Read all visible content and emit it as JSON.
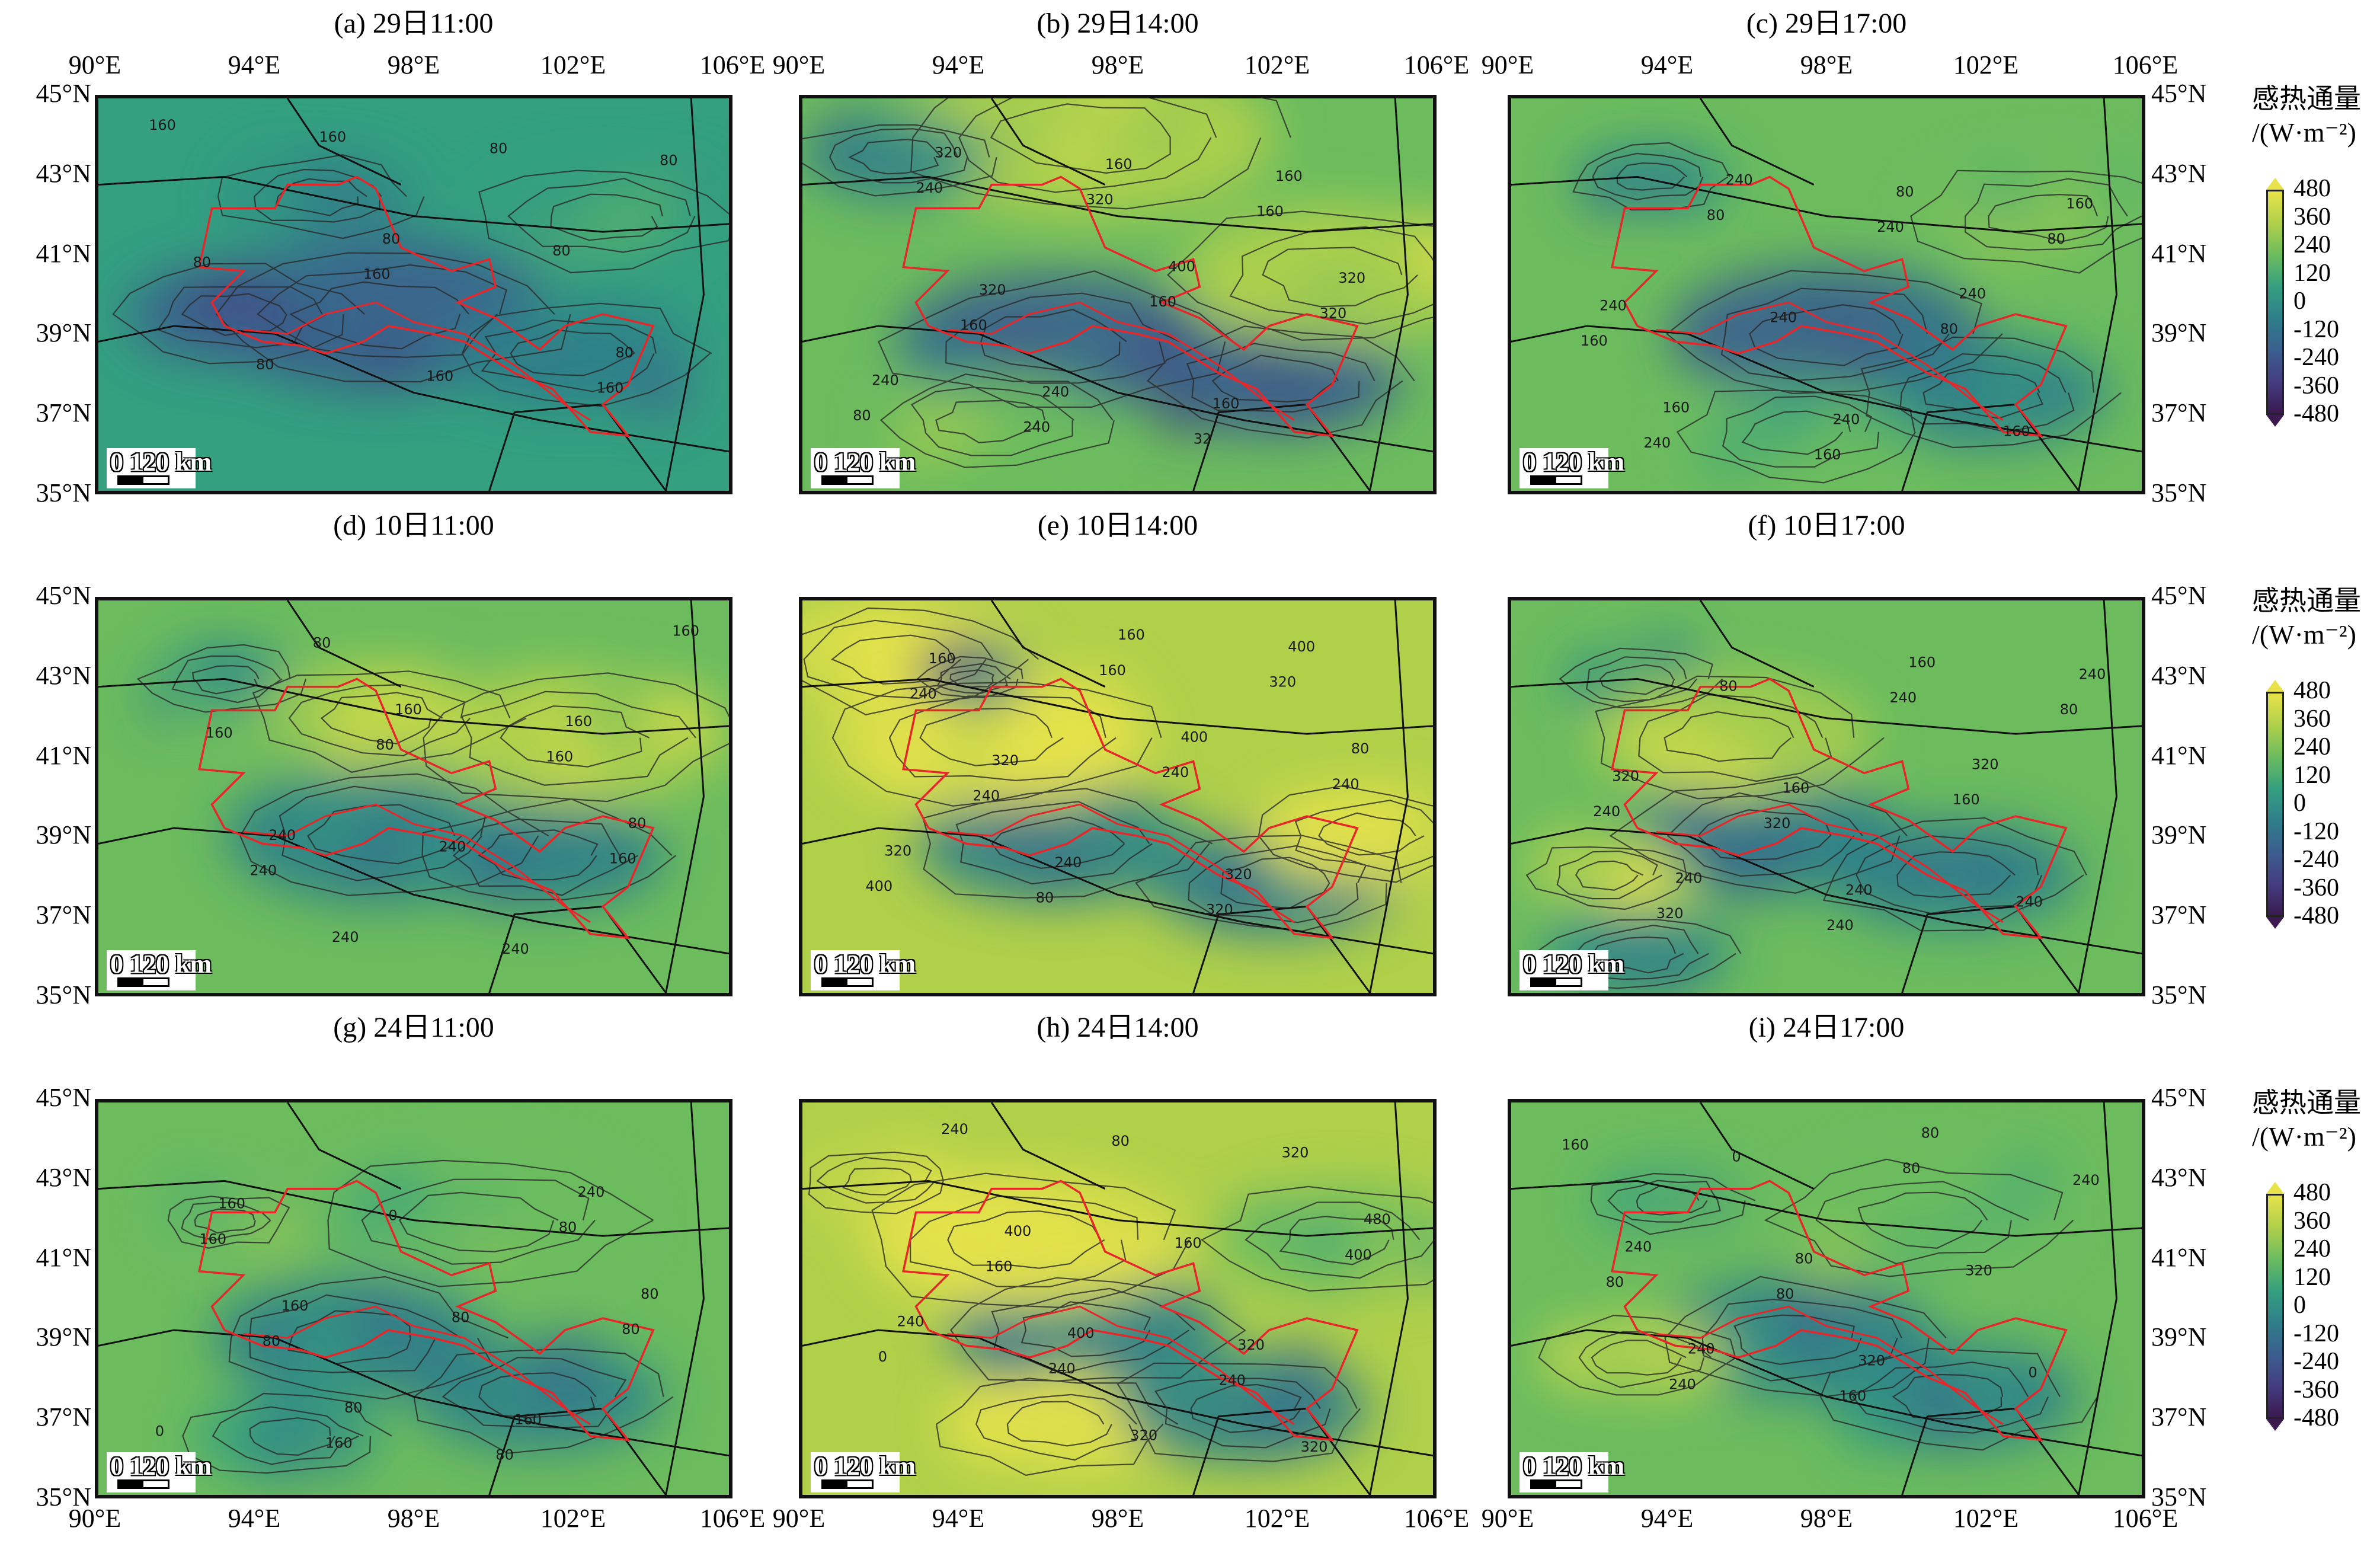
{
  "chart_data": {
    "type": "heatmap",
    "layout": "3x3 small multiples of gridded maps with contour lines",
    "variable_label": "感热通量",
    "unit_label": "/(W·m⁻²)",
    "colorbar": {
      "ticks": [
        480,
        360,
        240,
        120,
        0,
        -120,
        -240,
        -360,
        -480
      ],
      "range": [
        -480,
        480
      ],
      "extend": "both",
      "colors": [
        "#3a1a4f",
        "#443d82",
        "#3b5f8e",
        "#2e7f8a",
        "#34a07f",
        "#6cbc5e",
        "#b0d04a",
        "#e8e34a"
      ]
    },
    "x_ticks": [
      "90°E",
      "94°E",
      "98°E",
      "102°E",
      "106°E"
    ],
    "y_ticks": [
      "45°N",
      "43°N",
      "41°N",
      "39°N",
      "37°N",
      "35°N"
    ],
    "lon_range": [
      90,
      106
    ],
    "lat_range": [
      35,
      45
    ],
    "scalebar_label": "0 120 km",
    "boundary_color": "#e8262a",
    "panels": [
      {
        "id": "a",
        "title": "(a) 29日11:00",
        "contour_labels": [
          "160",
          "80",
          "80",
          "160",
          "80",
          "80",
          "80",
          "80",
          "160",
          "80",
          "160",
          "160"
        ]
      },
      {
        "id": "b",
        "title": "(b) 29日14:00",
        "contour_labels": [
          "320",
          "400",
          "240",
          "160",
          "320",
          "240",
          "160",
          "320",
          "160",
          "240",
          "160",
          "80",
          "320",
          "320",
          "240",
          "160",
          "160",
          "32"
        ]
      },
      {
        "id": "c",
        "title": "(c) 29日17:00",
        "contour_labels": [
          "240",
          "240",
          "160",
          "80",
          "240",
          "240",
          "160",
          "240",
          "160",
          "80",
          "80",
          "240",
          "240",
          "160",
          "160",
          "80"
        ]
      },
      {
        "id": "d",
        "title": "(d) 10日11:00",
        "contour_labels": [
          "160",
          "80",
          "240",
          "160",
          "240",
          "240",
          "160",
          "240",
          "160",
          "80",
          "160",
          "80",
          "160",
          "240"
        ]
      },
      {
        "id": "e",
        "title": "(e) 10日14:00",
        "contour_labels": [
          "400",
          "320",
          "160",
          "80",
          "240",
          "400",
          "320",
          "320",
          "160",
          "240",
          "400",
          "160",
          "240",
          "80",
          "320",
          "240",
          "320",
          "240"
        ]
      },
      {
        "id": "f",
        "title": "(f) 10日17:00",
        "contour_labels": [
          "320",
          "240",
          "160",
          "320",
          "240",
          "240",
          "160",
          "240",
          "80",
          "160",
          "320",
          "240",
          "240",
          "240",
          "80",
          "320"
        ]
      },
      {
        "id": "g",
        "title": "(g) 24日11:00",
        "contour_labels": [
          "80",
          "80",
          "240",
          "160",
          "160",
          "160",
          "80",
          "0",
          "0",
          "80",
          "160",
          "80",
          "80",
          "80",
          "160"
        ]
      },
      {
        "id": "h",
        "title": "(h) 24日14:00",
        "contour_labels": [
          "240",
          "320",
          "480",
          "400",
          "320",
          "400",
          "320",
          "240",
          "160",
          "0",
          "80",
          "400",
          "240",
          "320",
          "160",
          "240"
        ]
      },
      {
        "id": "i",
        "title": "(i) 24日17:00",
        "contour_labels": [
          "240",
          "80",
          "240",
          "320",
          "160",
          "80",
          "0",
          "0",
          "320",
          "240",
          "80",
          "80",
          "160",
          "240",
          "80"
        ]
      }
    ]
  }
}
